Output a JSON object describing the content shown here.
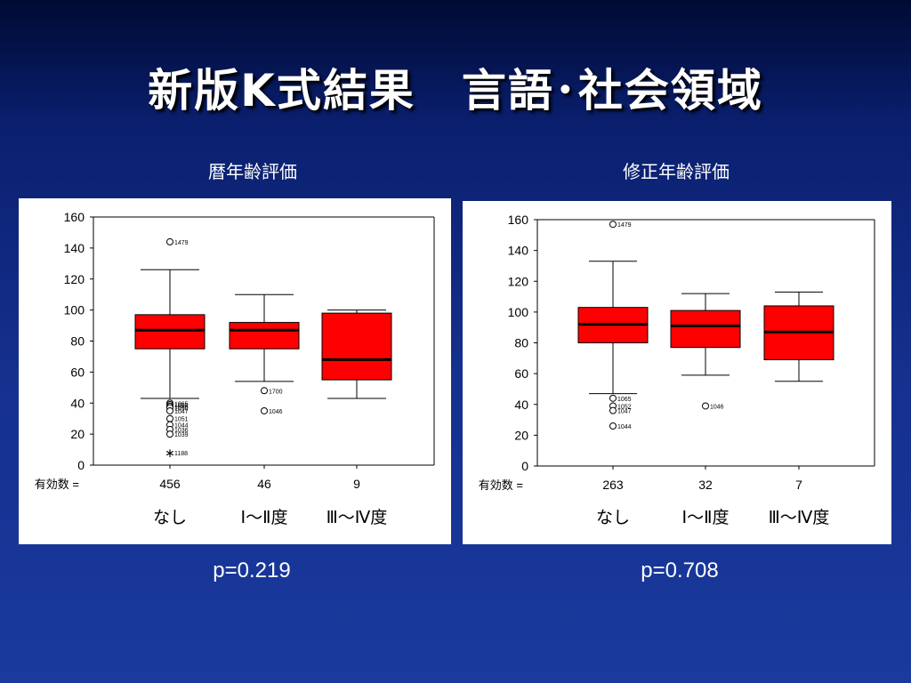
{
  "slide": {
    "title": "新版K式結果　言語･社会領域"
  },
  "chart_data": [
    {
      "type": "box",
      "title": "暦年齢評価",
      "ylim": [
        0,
        160
      ],
      "yticks": [
        0,
        20,
        40,
        60,
        80,
        100,
        120,
        140,
        160
      ],
      "n_label": "有効数 =",
      "box_color": "#ff0000",
      "categories": [
        "なし",
        "Ⅰ〜Ⅱ度",
        "Ⅲ〜Ⅳ度"
      ],
      "n": [
        "456",
        "46",
        "9"
      ],
      "boxes": [
        {
          "whisker_low": 43,
          "q1": 75,
          "median": 87,
          "q3": 97,
          "whisker_high": 126,
          "outliers": [
            {
              "y": 144,
              "label": "1479",
              "marker": "circle"
            },
            {
              "y": 40,
              "label": "1065",
              "marker": "circle"
            },
            {
              "y": 39,
              "label": "1052",
              "marker": "circle"
            },
            {
              "y": 38,
              "label": "1055",
              "marker": "circle"
            },
            {
              "y": 37,
              "label": "1050",
              "marker": "circle"
            },
            {
              "y": 35,
              "label": "1047",
              "marker": "circle"
            },
            {
              "y": 30,
              "label": "1051",
              "marker": "circle"
            },
            {
              "y": 26,
              "label": "1044",
              "marker": "circle"
            },
            {
              "y": 23,
              "label": "1036",
              "marker": "circle"
            },
            {
              "y": 20,
              "label": "1039",
              "marker": "circle"
            },
            {
              "y": 8,
              "label": "1188",
              "marker": "star"
            }
          ]
        },
        {
          "whisker_low": 54,
          "q1": 75,
          "median": 87,
          "q3": 92,
          "whisker_high": 110,
          "outliers": [
            {
              "y": 48,
              "label": "1700",
              "marker": "circle"
            },
            {
              "y": 35,
              "label": "1046",
              "marker": "circle"
            }
          ]
        },
        {
          "whisker_low": 43,
          "q1": 55,
          "median": 68,
          "q3": 98,
          "whisker_high": 100,
          "outliers": []
        }
      ],
      "p_value": "p=0.219"
    },
    {
      "type": "box",
      "title": "修正年齢評価",
      "ylim": [
        0,
        160
      ],
      "yticks": [
        0,
        20,
        40,
        60,
        80,
        100,
        120,
        140,
        160
      ],
      "n_label": "有効数 =",
      "box_color": "#ff0000",
      "categories": [
        "なし",
        "Ⅰ〜Ⅱ度",
        "Ⅲ〜Ⅳ度"
      ],
      "n": [
        "263",
        "32",
        "7"
      ],
      "boxes": [
        {
          "whisker_low": 47,
          "q1": 80,
          "median": 92,
          "q3": 103,
          "whisker_high": 133,
          "outliers": [
            {
              "y": 157,
              "label": "1479",
              "marker": "circle"
            },
            {
              "y": 44,
              "label": "1065",
              "marker": "circle"
            },
            {
              "y": 39,
              "label": "1052",
              "marker": "circle"
            },
            {
              "y": 36,
              "label": "1047",
              "marker": "circle"
            },
            {
              "y": 26,
              "label": "1044",
              "marker": "circle"
            }
          ]
        },
        {
          "whisker_low": 59,
          "q1": 77,
          "median": 91,
          "q3": 101,
          "whisker_high": 112,
          "outliers": [
            {
              "y": 39,
              "label": "1046",
              "marker": "circle"
            }
          ]
        },
        {
          "whisker_low": 55,
          "q1": 69,
          "median": 87,
          "q3": 104,
          "whisker_high": 113,
          "outliers": []
        }
      ],
      "p_value": "p=0.708"
    }
  ]
}
